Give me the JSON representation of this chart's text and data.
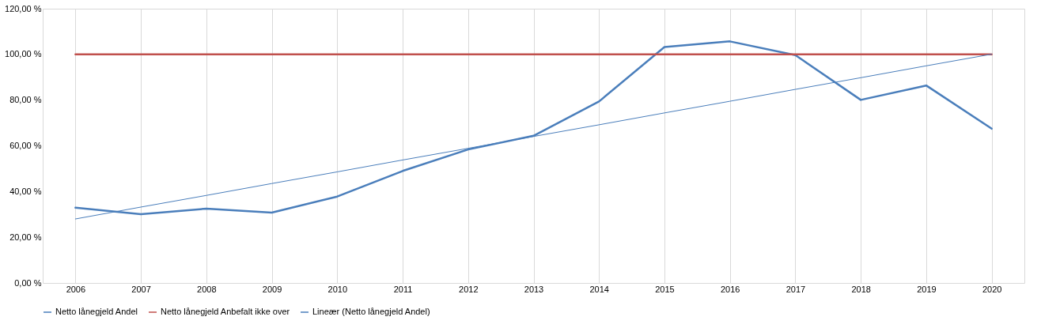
{
  "chart_data": {
    "type": "line",
    "categories": [
      "2006",
      "2007",
      "2008",
      "2009",
      "2010",
      "2011",
      "2012",
      "2013",
      "2014",
      "2015",
      "2016",
      "2017",
      "2018",
      "2019",
      "2020"
    ],
    "series": [
      {
        "name": "Netto lånegjeld Andel",
        "color": "#4a7ebb",
        "values": [
          32.9,
          30.1,
          32.5,
          30.8,
          37.8,
          49.0,
          58.4,
          64.4,
          79.4,
          103.2,
          105.7,
          99.7,
          80.1,
          86.4,
          67.5
        ]
      },
      {
        "name": "Netto lånegjeld Anbefalt ikke over",
        "color": "#c0504d",
        "values": [
          100,
          100,
          100,
          100,
          100,
          100,
          100,
          100,
          100,
          100,
          100,
          100,
          100,
          100,
          100
        ]
      },
      {
        "name": "Lineær (Netto lånegjeld Andel)",
        "type": "line",
        "color": "#4a7ebb",
        "values": [
          28.0,
          33.2,
          38.3,
          43.5,
          48.6,
          53.8,
          58.9,
          64.1,
          69.2,
          74.4,
          79.5,
          84.7,
          89.8,
          95.0,
          100.1
        ]
      }
    ],
    "ylim": [
      0,
      120
    ],
    "yticks": [
      {
        "value": 0,
        "label": "0,00 %"
      },
      {
        "value": 20,
        "label": "20,00 %"
      },
      {
        "value": 40,
        "label": "40,00 %"
      },
      {
        "value": 60,
        "label": "60,00 %"
      },
      {
        "value": 80,
        "label": "80,00 %"
      },
      {
        "value": 100,
        "label": "100,00 %"
      },
      {
        "value": 120,
        "label": "120,00 %"
      }
    ],
    "grid": "x",
    "legend": "bottom",
    "marker": "none",
    "line_style": "solid"
  }
}
